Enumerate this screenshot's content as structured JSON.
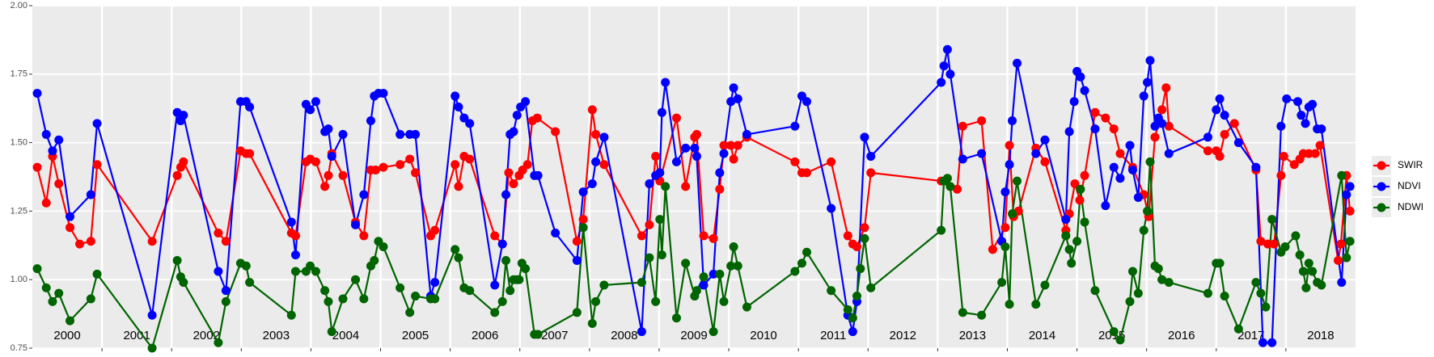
{
  "chart_data": {
    "type": "line",
    "xlim": [
      2000,
      2019
    ],
    "ylim": [
      0.75,
      2.0
    ],
    "yticks": [
      {
        "value": 0.75,
        "label": "0.75"
      },
      {
        "value": 1.0,
        "label": "1.00"
      },
      {
        "value": 1.25,
        "label": "1.25"
      },
      {
        "value": 1.5,
        "label": "1.50"
      },
      {
        "value": 1.75,
        "label": "1.75"
      },
      {
        "value": 2.0,
        "label": "2.00"
      }
    ],
    "xticks": [
      {
        "value": 2000.5,
        "label": "2000"
      },
      {
        "value": 2001.5,
        "label": "2001"
      },
      {
        "value": 2002.5,
        "label": "2002"
      },
      {
        "value": 2003.5,
        "label": "2003"
      },
      {
        "value": 2004.5,
        "label": "2004"
      },
      {
        "value": 2005.5,
        "label": "2005"
      },
      {
        "value": 2006.5,
        "label": "2006"
      },
      {
        "value": 2007.5,
        "label": "2007"
      },
      {
        "value": 2008.5,
        "label": "2008"
      },
      {
        "value": 2009.5,
        "label": "2009"
      },
      {
        "value": 2010.5,
        "label": "2010"
      },
      {
        "value": 2011.5,
        "label": "2011"
      },
      {
        "value": 2012.5,
        "label": "2012"
      },
      {
        "value": 2013.5,
        "label": "2013"
      },
      {
        "value": 2014.5,
        "label": "2014"
      },
      {
        "value": 2015.5,
        "label": "2015"
      },
      {
        "value": 2016.5,
        "label": "2016"
      },
      {
        "value": 2017.5,
        "label": "2017"
      },
      {
        "value": 2018.5,
        "label": "2018"
      }
    ],
    "xgrid": [
      2001,
      2002,
      2003,
      2004,
      2005,
      2006,
      2007,
      2008,
      2009,
      2010,
      2011,
      2012,
      2013,
      2014,
      2015,
      2016,
      2017,
      2018
    ],
    "grid": true,
    "legend": "right",
    "series": [
      {
        "name": "SWIR",
        "color": "#ff0000",
        "x": [
          2000.07,
          2000.2,
          2000.29,
          2000.38,
          2000.54,
          2000.68,
          2000.84,
          2000.93,
          2001.72,
          2002.08,
          2002.13,
          2002.17,
          2002.67,
          2002.78,
          2002.99,
          2003.07,
          2003.12,
          2003.72,
          2003.78,
          2003.93,
          2003.99,
          2004.07,
          2004.2,
          2004.25,
          2004.3,
          2004.46,
          2004.64,
          2004.76,
          2004.86,
          2004.93,
          2005.04,
          2005.28,
          2005.42,
          2005.5,
          2005.72,
          2005.78,
          2006.07,
          2006.12,
          2006.2,
          2006.28,
          2006.64,
          2006.75,
          2006.84,
          2006.91,
          2006.99,
          2007.04,
          2007.11,
          2007.18,
          2007.25,
          2007.51,
          2007.82,
          2007.91,
          2008.04,
          2008.09,
          2008.21,
          2008.75,
          2008.86,
          2008.95,
          2009.01,
          2009.25,
          2009.38,
          2009.51,
          2009.54,
          2009.64,
          2009.78,
          2009.87,
          2009.93,
          2010.03,
          2010.07,
          2010.13,
          2010.26,
          2010.95,
          2011.05,
          2011.12,
          2011.47,
          2011.71,
          2011.78,
          2011.84,
          2011.95,
          2012.04,
          2013.05,
          2013.28,
          2013.36,
          2013.63,
          2013.79,
          2013.97,
          2014.03,
          2014.09,
          2014.16,
          2014.41,
          2014.54,
          2014.84,
          2014.89,
          2014.97,
          2015.04,
          2015.11,
          2015.26,
          2015.41,
          2015.53,
          2015.62,
          2015.8,
          2015.96,
          2016.03,
          2016.12,
          2016.22,
          2016.28,
          2016.32,
          2016.88,
          2017.0,
          2017.05,
          2017.12,
          2017.26,
          2017.57,
          2017.64,
          2017.74,
          2017.83,
          2017.93,
          2017.97,
          2018.12,
          2018.2,
          2018.25,
          2018.33,
          2018.42,
          2018.49,
          2018.75,
          2018.79,
          2018.87,
          2018.92
        ],
        "values": [
          1.41,
          1.28,
          1.45,
          1.35,
          1.19,
          1.13,
          1.14,
          1.42,
          1.14,
          1.38,
          1.41,
          1.43,
          1.17,
          1.14,
          1.47,
          1.46,
          1.46,
          1.17,
          1.16,
          1.43,
          1.44,
          1.43,
          1.34,
          1.38,
          1.46,
          1.38,
          1.21,
          1.16,
          1.4,
          1.4,
          1.41,
          1.42,
          1.44,
          1.39,
          1.16,
          1.18,
          1.42,
          1.34,
          1.45,
          1.44,
          1.16,
          1.13,
          1.39,
          1.35,
          1.38,
          1.4,
          1.42,
          1.58,
          1.59,
          1.54,
          1.14,
          1.22,
          1.62,
          1.53,
          1.42,
          1.16,
          1.2,
          1.45,
          1.36,
          1.59,
          1.34,
          1.52,
          1.53,
          1.16,
          1.15,
          1.33,
          1.49,
          1.49,
          1.44,
          1.49,
          1.52,
          1.43,
          1.39,
          1.39,
          1.43,
          1.16,
          1.13,
          1.12,
          1.19,
          1.39,
          1.36,
          1.33,
          1.56,
          1.58,
          1.11,
          1.19,
          1.49,
          1.23,
          1.25,
          1.48,
          1.43,
          1.18,
          1.24,
          1.35,
          1.29,
          1.38,
          1.61,
          1.59,
          1.55,
          1.46,
          1.41,
          1.31,
          1.23,
          1.52,
          1.62,
          1.7,
          1.56,
          1.47,
          1.47,
          1.45,
          1.53,
          1.57,
          1.4,
          1.14,
          1.13,
          1.13,
          1.38,
          1.45,
          1.42,
          1.44,
          1.46,
          1.46,
          1.46,
          1.49,
          1.07,
          1.13,
          1.38,
          1.25
        ]
      },
      {
        "name": "NDVI",
        "color": "#0000ff",
        "x": [
          2000.07,
          2000.2,
          2000.29,
          2000.38,
          2000.54,
          2000.84,
          2000.93,
          2001.72,
          2002.08,
          2002.13,
          2002.17,
          2002.67,
          2002.78,
          2002.99,
          2003.07,
          2003.12,
          2003.72,
          2003.78,
          2003.93,
          2003.99,
          2004.07,
          2004.2,
          2004.25,
          2004.3,
          2004.46,
          2004.64,
          2004.76,
          2004.86,
          2004.91,
          2004.97,
          2005.04,
          2005.28,
          2005.42,
          2005.5,
          2005.72,
          2005.78,
          2006.07,
          2006.12,
          2006.2,
          2006.28,
          2006.64,
          2006.75,
          2006.8,
          2006.86,
          2006.91,
          2006.96,
          2007.01,
          2007.08,
          2007.21,
          2007.26,
          2007.51,
          2007.82,
          2007.91,
          2008.04,
          2008.09,
          2008.21,
          2008.75,
          2008.86,
          2008.95,
          2009.01,
          2009.04,
          2009.09,
          2009.25,
          2009.38,
          2009.51,
          2009.54,
          2009.64,
          2009.78,
          2009.87,
          2009.93,
          2010.03,
          2010.07,
          2010.13,
          2010.26,
          2010.95,
          2011.05,
          2011.12,
          2011.47,
          2011.71,
          2011.78,
          2011.84,
          2011.95,
          2012.04,
          2013.05,
          2013.09,
          2013.14,
          2013.18,
          2013.36,
          2013.63,
          2013.92,
          2013.97,
          2014.03,
          2014.07,
          2014.14,
          2014.41,
          2014.54,
          2014.84,
          2014.89,
          2014.96,
          2015.0,
          2015.05,
          2015.11,
          2015.26,
          2015.41,
          2015.53,
          2015.62,
          2015.76,
          2015.8,
          2015.88,
          2015.96,
          2016.01,
          2016.05,
          2016.12,
          2016.17,
          2016.22,
          2016.32,
          2016.88,
          2017.0,
          2017.05,
          2017.12,
          2017.32,
          2017.57,
          2017.67,
          2017.8,
          2017.93,
          2018.01,
          2018.17,
          2018.22,
          2018.28,
          2018.33,
          2018.38,
          2018.45,
          2018.51,
          2018.8,
          2018.87,
          2018.92
        ],
        "values": [
          1.68,
          1.53,
          1.47,
          1.51,
          1.23,
          1.31,
          1.57,
          0.87,
          1.61,
          1.58,
          1.6,
          1.03,
          0.96,
          1.65,
          1.65,
          1.63,
          1.21,
          1.09,
          1.64,
          1.62,
          1.65,
          1.54,
          1.55,
          1.45,
          1.53,
          1.2,
          1.31,
          1.58,
          1.67,
          1.68,
          1.68,
          1.53,
          1.53,
          1.53,
          0.94,
          0.99,
          1.67,
          1.63,
          1.59,
          1.57,
          0.98,
          1.13,
          1.31,
          1.53,
          1.54,
          1.6,
          1.63,
          1.65,
          1.38,
          1.38,
          1.17,
          1.07,
          1.32,
          1.35,
          1.43,
          1.52,
          0.81,
          1.35,
          1.38,
          1.39,
          1.61,
          1.72,
          1.43,
          1.48,
          1.48,
          1.45,
          0.98,
          1.02,
          1.39,
          1.46,
          1.65,
          1.7,
          1.66,
          1.53,
          1.56,
          1.67,
          1.65,
          1.26,
          0.87,
          0.81,
          0.92,
          1.52,
          1.45,
          1.72,
          1.78,
          1.84,
          1.75,
          1.44,
          1.46,
          1.14,
          1.32,
          1.42,
          1.58,
          1.79,
          1.46,
          1.51,
          1.22,
          1.54,
          1.65,
          1.76,
          1.74,
          1.69,
          1.55,
          1.27,
          1.41,
          1.37,
          1.49,
          1.4,
          1.3,
          1.67,
          1.72,
          1.8,
          1.56,
          1.59,
          1.57,
          1.46,
          1.52,
          1.62,
          1.66,
          1.6,
          1.5,
          1.41,
          0.77,
          0.77,
          1.56,
          1.66,
          1.65,
          1.6,
          1.57,
          1.63,
          1.64,
          1.55,
          1.55,
          0.99,
          1.31,
          1.34
        ]
      },
      {
        "name": "NDWI",
        "color": "#006400",
        "x": [
          2000.07,
          2000.2,
          2000.29,
          2000.38,
          2000.54,
          2000.84,
          2000.93,
          2001.72,
          2002.08,
          2002.13,
          2002.17,
          2002.67,
          2002.78,
          2002.99,
          2003.07,
          2003.12,
          2003.72,
          2003.78,
          2003.93,
          2003.99,
          2004.07,
          2004.2,
          2004.25,
          2004.3,
          2004.46,
          2004.64,
          2004.76,
          2004.86,
          2004.91,
          2004.97,
          2005.04,
          2005.28,
          2005.42,
          2005.5,
          2005.72,
          2005.78,
          2006.07,
          2006.12,
          2006.2,
          2006.28,
          2006.64,
          2006.75,
          2006.8,
          2006.86,
          2006.91,
          2006.96,
          2006.99,
          2007.03,
          2007.08,
          2007.21,
          2007.26,
          2007.82,
          2007.91,
          2008.04,
          2008.09,
          2008.21,
          2008.75,
          2008.86,
          2008.95,
          2009.01,
          2009.04,
          2009.09,
          2009.25,
          2009.38,
          2009.51,
          2009.54,
          2009.64,
          2009.78,
          2009.87,
          2009.93,
          2010.03,
          2010.07,
          2010.13,
          2010.26,
          2010.95,
          2011.05,
          2011.12,
          2011.47,
          2011.71,
          2011.78,
          2011.84,
          2011.89,
          2011.95,
          2012.04,
          2013.05,
          2013.09,
          2013.14,
          2013.18,
          2013.36,
          2013.63,
          2013.92,
          2013.97,
          2014.03,
          2014.07,
          2014.14,
          2014.41,
          2014.54,
          2014.84,
          2014.89,
          2014.92,
          2015.0,
          2015.05,
          2015.11,
          2015.26,
          2015.53,
          2015.62,
          2015.76,
          2015.8,
          2015.88,
          2015.96,
          2016.01,
          2016.05,
          2016.12,
          2016.17,
          2016.22,
          2016.32,
          2016.88,
          2017.0,
          2017.05,
          2017.12,
          2017.32,
          2017.57,
          2017.64,
          2017.71,
          2017.8,
          2017.93,
          2017.99,
          2018.14,
          2018.2,
          2018.25,
          2018.29,
          2018.33,
          2018.38,
          2018.45,
          2018.51,
          2018.8,
          2018.87,
          2018.92
        ],
        "values": [
          1.04,
          0.97,
          0.92,
          0.95,
          0.85,
          0.93,
          1.02,
          0.75,
          1.07,
          1.01,
          0.99,
          0.77,
          0.92,
          1.06,
          1.05,
          0.99,
          0.87,
          1.03,
          1.03,
          1.05,
          1.03,
          0.96,
          0.92,
          0.81,
          0.93,
          1.0,
          0.93,
          1.05,
          1.07,
          1.14,
          1.12,
          0.97,
          0.88,
          0.94,
          0.93,
          0.93,
          1.11,
          1.08,
          0.97,
          0.96,
          0.88,
          0.92,
          1.07,
          0.96,
          1.0,
          1.0,
          1.0,
          1.06,
          1.04,
          0.8,
          0.8,
          0.88,
          1.19,
          0.84,
          0.92,
          0.98,
          0.99,
          1.08,
          0.92,
          1.22,
          1.09,
          1.34,
          0.86,
          1.06,
          0.94,
          0.96,
          1.01,
          0.81,
          1.02,
          0.92,
          1.05,
          1.12,
          1.05,
          0.9,
          1.03,
          1.06,
          1.1,
          0.96,
          0.89,
          0.86,
          0.94,
          1.04,
          1.15,
          0.97,
          1.18,
          1.36,
          1.37,
          1.34,
          0.88,
          0.87,
          0.99,
          1.12,
          0.91,
          1.24,
          1.36,
          0.91,
          0.98,
          1.16,
          1.11,
          1.06,
          1.14,
          1.33,
          1.21,
          0.96,
          0.81,
          0.78,
          0.92,
          1.03,
          0.95,
          1.18,
          1.25,
          1.43,
          1.05,
          1.04,
          1.0,
          0.99,
          0.95,
          1.06,
          1.06,
          0.94,
          0.82,
          0.99,
          0.95,
          0.9,
          1.22,
          1.1,
          1.12,
          1.16,
          1.09,
          1.03,
          0.97,
          1.06,
          1.03,
          0.99,
          0.98,
          1.38,
          1.08,
          1.14
        ]
      }
    ]
  }
}
